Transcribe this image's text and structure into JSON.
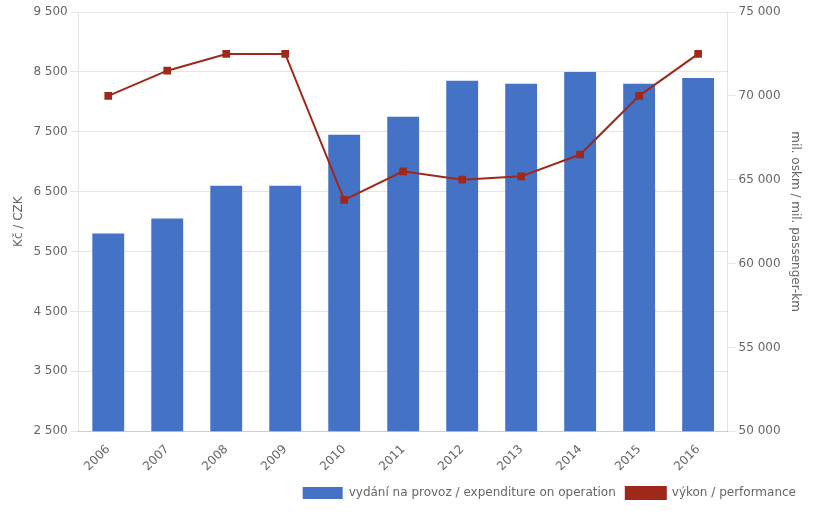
{
  "chart_data": {
    "type": "bar",
    "categories": [
      "2006",
      "2007",
      "2008",
      "2009",
      "2010",
      "2011",
      "2012",
      "2013",
      "2014",
      "2015",
      "2016"
    ],
    "series": [
      {
        "name": "vydání na provoz / expenditure on operation",
        "type": "bar",
        "color": "#4472C4",
        "values": [
          5800,
          6050,
          6600,
          6600,
          7450,
          7750,
          8350,
          8300,
          8500,
          8300,
          8400
        ]
      },
      {
        "name": "výkon / performance",
        "type": "line",
        "color": "#A0281A",
        "marker": "square",
        "line_style": "solid",
        "axis": "y2",
        "values": [
          70000,
          71500,
          72500,
          72500,
          63800,
          65500,
          65000,
          65200,
          66500,
          70000,
          72500
        ]
      }
    ],
    "ylabel": "Kč / CZK",
    "y2label": "mil. oskm / mil. passenger-km",
    "ylim": [
      2500,
      9500
    ],
    "yticks": [
      {
        "value": 2500,
        "label": "2 500"
      },
      {
        "value": 3500,
        "label": "3 500"
      },
      {
        "value": 4500,
        "label": "4 500"
      },
      {
        "value": 5500,
        "label": "5 500"
      },
      {
        "value": 6500,
        "label": "6 500"
      },
      {
        "value": 7500,
        "label": "7 500"
      },
      {
        "value": 8500,
        "label": "8 500"
      },
      {
        "value": 9500,
        "label": "9 500"
      }
    ],
    "y2lim": [
      50000,
      75000
    ],
    "y2ticks": [
      {
        "value": 50000,
        "label": "50 000"
      },
      {
        "value": 55000,
        "label": "55 000"
      },
      {
        "value": 60000,
        "label": "60 000"
      },
      {
        "value": 65000,
        "label": "65 000"
      },
      {
        "value": 70000,
        "label": "70 000"
      },
      {
        "value": 75000,
        "label": "75 000"
      }
    ],
    "grid": true,
    "legend": "lower right"
  }
}
